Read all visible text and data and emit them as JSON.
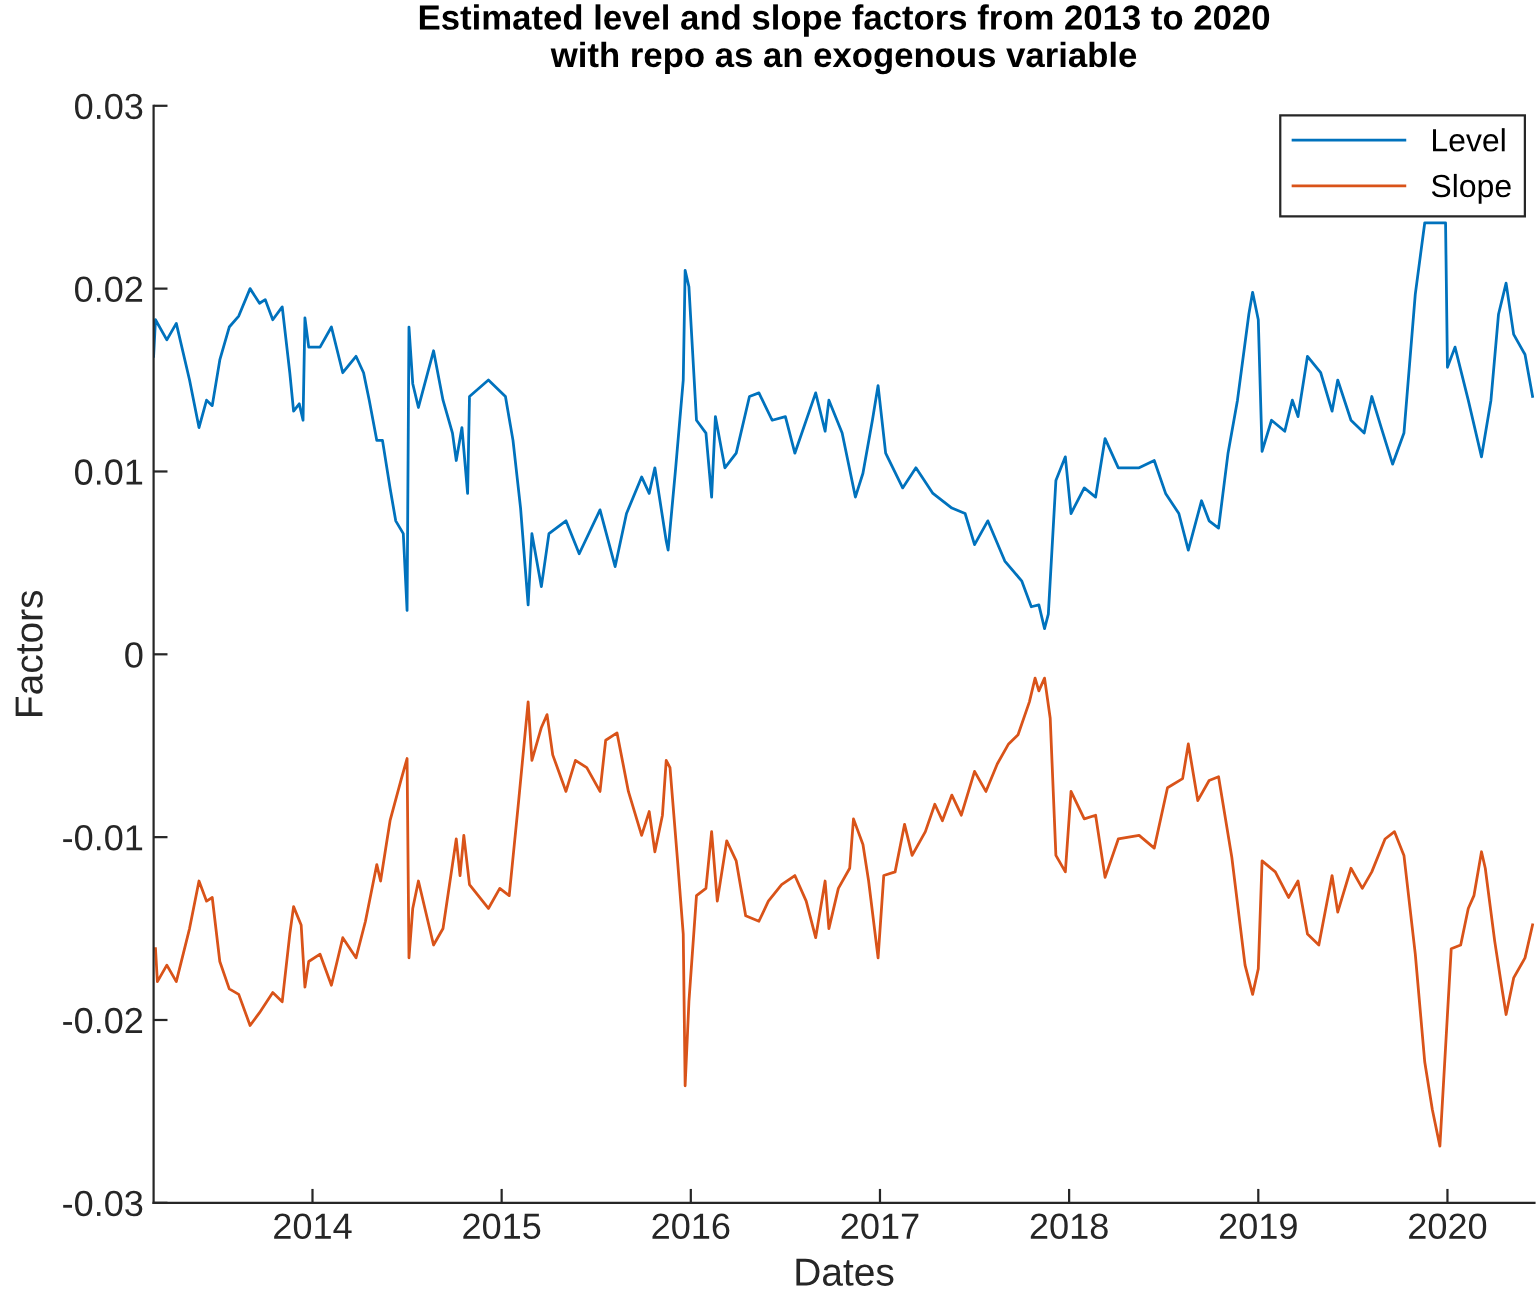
{
  "chart_data": {
    "type": "line",
    "title": "Estimated level and slope factors from 2013 to 2020\nwith repo as an exogenous variable",
    "xlabel": "Dates",
    "ylabel": "Factors",
    "xlim": [
      2013.16,
      2020.46
    ],
    "xticks": [
      2014,
      2015,
      2016,
      2017,
      2018,
      2019,
      2020
    ],
    "ylim": [
      -0.03,
      0.03
    ],
    "yticks": [
      -0.03,
      -0.02,
      -0.01,
      0,
      0.01,
      0.02,
      0.03
    ],
    "grid": false,
    "legend": "top right",
    "marker": "none",
    "line_style": "solid",
    "series": [
      {
        "name": "Level",
        "color": "#0072bd",
        "x": [
          2013.16,
          2013.17,
          2013.23,
          2013.28,
          2013.35,
          2013.4,
          2013.44,
          2013.47,
          2013.51,
          2013.56,
          2013.61,
          2013.67,
          2013.72,
          2013.75,
          2013.79,
          2013.84,
          2013.88,
          2013.9,
          2013.93,
          2013.95,
          2013.96,
          2013.98,
          2014.04,
          2014.1,
          2014.16,
          2014.23,
          2014.27,
          2014.3,
          2014.34,
          2014.37,
          2014.41,
          2014.44,
          2014.48,
          2014.5,
          2014.51,
          2014.53,
          2014.56,
          2014.64,
          2014.69,
          2014.74,
          2014.76,
          2014.79,
          2014.82,
          2014.83,
          2014.93,
          2015.02,
          2015.06,
          2015.1,
          2015.14,
          2015.16,
          2015.21,
          2015.25,
          2015.34,
          2015.41,
          2015.52,
          2015.6,
          2015.66,
          2015.74,
          2015.78,
          2015.81,
          2015.87,
          2015.88,
          2015.92,
          2015.96,
          2015.97,
          2015.99,
          2016.03,
          2016.08,
          2016.11,
          2016.13,
          2016.18,
          2016.24,
          2016.31,
          2016.36,
          2016.43,
          2016.5,
          2016.55,
          2016.66,
          2016.71,
          2016.73,
          2016.8,
          2016.87,
          2016.91,
          2016.96,
          2016.99,
          2017.03,
          2017.12,
          2017.19,
          2017.28,
          2017.38,
          2017.45,
          2017.5,
          2017.57,
          2017.66,
          2017.75,
          2017.8,
          2017.84,
          2017.87,
          2017.89,
          2017.93,
          2017.98,
          2018.01,
          2018.08,
          2018.14,
          2018.19,
          2018.26,
          2018.37,
          2018.45,
          2018.51,
          2018.58,
          2018.63,
          2018.7,
          2018.74,
          2018.79,
          2018.84,
          2018.89,
          2018.95,
          2018.97,
          2019.0,
          2019.02,
          2019.07,
          2019.14,
          2019.18,
          2019.21,
          2019.26,
          2019.33,
          2019.39,
          2019.42,
          2019.49,
          2019.56,
          2019.6,
          2019.65,
          2019.71,
          2019.77,
          2019.83,
          2019.88,
          2019.99,
          2020.0,
          2020.04,
          2020.11,
          2020.18,
          2020.23,
          2020.27,
          2020.31,
          2020.35,
          2020.41,
          2020.45
        ],
        "values": [
          0.0163,
          0.0183,
          0.0172,
          0.0181,
          0.015,
          0.0124,
          0.0139,
          0.0136,
          0.0161,
          0.0179,
          0.0185,
          0.02,
          0.0192,
          0.0194,
          0.0183,
          0.019,
          0.0154,
          0.0133,
          0.0137,
          0.0128,
          0.0184,
          0.0168,
          0.0168,
          0.0179,
          0.0154,
          0.0163,
          0.0154,
          0.0139,
          0.0117,
          0.0117,
          0.0091,
          0.0073,
          0.0066,
          0.0024,
          0.0179,
          0.0148,
          0.0135,
          0.0166,
          0.0139,
          0.0121,
          0.0106,
          0.0124,
          0.0088,
          0.0141,
          0.015,
          0.0141,
          0.0117,
          0.008,
          0.0027,
          0.0066,
          0.0037,
          0.0066,
          0.0073,
          0.0055,
          0.0079,
          0.0048,
          0.0077,
          0.0097,
          0.0088,
          0.0102,
          0.0062,
          0.0057,
          0.0102,
          0.015,
          0.021,
          0.0201,
          0.0128,
          0.0121,
          0.0086,
          0.013,
          0.0102,
          0.011,
          0.0141,
          0.0143,
          0.0128,
          0.013,
          0.011,
          0.0143,
          0.0122,
          0.0139,
          0.0121,
          0.0086,
          0.0099,
          0.0128,
          0.0147,
          0.011,
          0.0091,
          0.0102,
          0.0088,
          0.008,
          0.0077,
          0.006,
          0.0073,
          0.0051,
          0.004,
          0.0026,
          0.0027,
          0.0014,
          0.0022,
          0.0095,
          0.0108,
          0.0077,
          0.0091,
          0.0086,
          0.0118,
          0.0102,
          0.0102,
          0.0106,
          0.0088,
          0.0077,
          0.0057,
          0.0084,
          0.0073,
          0.0069,
          0.011,
          0.0139,
          0.0186,
          0.0198,
          0.0183,
          0.0111,
          0.0128,
          0.0122,
          0.0139,
          0.013,
          0.0163,
          0.0154,
          0.0133,
          0.015,
          0.0128,
          0.0121,
          0.0141,
          0.0124,
          0.0104,
          0.0121,
          0.0197,
          0.0236,
          0.0236,
          0.0157,
          0.0168,
          0.0139,
          0.0108,
          0.0139,
          0.0186,
          0.0203,
          0.0175,
          0.0164,
          0.0141
        ]
      },
      {
        "name": "Slope",
        "color": "#d95319",
        "x": [
          2013.17,
          2013.18,
          2013.23,
          2013.28,
          2013.35,
          2013.4,
          2013.44,
          2013.47,
          2013.51,
          2013.56,
          2013.61,
          2013.67,
          2013.72,
          2013.79,
          2013.84,
          2013.88,
          2013.9,
          2013.94,
          2013.96,
          2013.98,
          2014.04,
          2014.1,
          2014.16,
          2014.23,
          2014.28,
          2014.34,
          2014.36,
          2014.41,
          2014.47,
          2014.5,
          2014.51,
          2014.53,
          2014.56,
          2014.64,
          2014.69,
          2014.74,
          2014.76,
          2014.78,
          2014.8,
          2014.83,
          2014.93,
          2014.99,
          2015.04,
          2015.09,
          2015.14,
          2015.16,
          2015.21,
          2015.24,
          2015.27,
          2015.34,
          2015.39,
          2015.45,
          2015.52,
          2015.55,
          2015.61,
          2015.67,
          2015.74,
          2015.78,
          2015.81,
          2015.85,
          2015.87,
          2015.89,
          2015.93,
          2015.96,
          2015.97,
          2015.99,
          2016.03,
          2016.08,
          2016.11,
          2016.14,
          2016.19,
          2016.24,
          2016.29,
          2016.36,
          2016.41,
          2016.48,
          2016.55,
          2016.61,
          2016.66,
          2016.71,
          2016.73,
          2016.78,
          2016.84,
          2016.86,
          2016.91,
          2016.94,
          2016.99,
          2017.02,
          2017.08,
          2017.13,
          2017.17,
          2017.24,
          2017.29,
          2017.33,
          2017.38,
          2017.43,
          2017.5,
          2017.56,
          2017.62,
          2017.68,
          2017.73,
          2017.79,
          2017.82,
          2017.84,
          2017.87,
          2017.9,
          2017.93,
          2017.98,
          2018.01,
          2018.08,
          2018.14,
          2018.19,
          2018.26,
          2018.37,
          2018.45,
          2018.52,
          2018.6,
          2018.63,
          2018.68,
          2018.74,
          2018.79,
          2018.86,
          2018.93,
          2018.97,
          2019.0,
          2019.02,
          2019.09,
          2019.16,
          2019.21,
          2019.26,
          2019.32,
          2019.39,
          2019.42,
          2019.49,
          2019.55,
          2019.6,
          2019.67,
          2019.72,
          2019.77,
          2019.83,
          2019.88,
          2019.92,
          2019.96,
          2020.02,
          2020.07,
          2020.11,
          2020.14,
          2020.18,
          2020.2,
          2020.25,
          2020.29,
          2020.31,
          2020.35,
          2020.41,
          2020.45
        ],
        "values": [
          -0.0161,
          -0.0179,
          -0.017,
          -0.0179,
          -0.015,
          -0.0124,
          -0.0135,
          -0.0133,
          -0.0168,
          -0.0183,
          -0.0186,
          -0.0203,
          -0.0196,
          -0.0185,
          -0.019,
          -0.0153,
          -0.0138,
          -0.0148,
          -0.0182,
          -0.0168,
          -0.0164,
          -0.0181,
          -0.0155,
          -0.0166,
          -0.0146,
          -0.0115,
          -0.0124,
          -0.0091,
          -0.0068,
          -0.0057,
          -0.0166,
          -0.0139,
          -0.0124,
          -0.0159,
          -0.015,
          -0.0115,
          -0.0101,
          -0.0121,
          -0.0099,
          -0.0126,
          -0.0139,
          -0.0128,
          -0.0132,
          -0.008,
          -0.0026,
          -0.0058,
          -0.004,
          -0.0033,
          -0.0055,
          -0.0075,
          -0.0058,
          -0.0062,
          -0.0075,
          -0.0047,
          -0.0043,
          -0.0075,
          -0.0099,
          -0.0086,
          -0.0108,
          -0.0088,
          -0.0058,
          -0.0062,
          -0.0113,
          -0.0153,
          -0.0236,
          -0.019,
          -0.0132,
          -0.0128,
          -0.0097,
          -0.0135,
          -0.0102,
          -0.0113,
          -0.0143,
          -0.0146,
          -0.0135,
          -0.0126,
          -0.0121,
          -0.0135,
          -0.0155,
          -0.0124,
          -0.015,
          -0.0128,
          -0.0117,
          -0.009,
          -0.0104,
          -0.0124,
          -0.0166,
          -0.0121,
          -0.0119,
          -0.0093,
          -0.011,
          -0.0097,
          -0.0082,
          -0.0091,
          -0.0077,
          -0.0088,
          -0.0064,
          -0.0075,
          -0.006,
          -0.0049,
          -0.0044,
          -0.0026,
          -0.0013,
          -0.002,
          -0.0013,
          -0.0035,
          -0.011,
          -0.0119,
          -0.0075,
          -0.009,
          -0.0088,
          -0.0122,
          -0.0101,
          -0.0099,
          -0.0106,
          -0.0073,
          -0.0068,
          -0.0049,
          -0.008,
          -0.0069,
          -0.0067,
          -0.0111,
          -0.017,
          -0.0186,
          -0.0172,
          -0.0113,
          -0.0119,
          -0.0133,
          -0.0124,
          -0.0153,
          -0.0159,
          -0.0121,
          -0.0141,
          -0.0117,
          -0.0128,
          -0.0119,
          -0.0101,
          -0.0097,
          -0.011,
          -0.0164,
          -0.0223,
          -0.0249,
          -0.0269,
          -0.0161,
          -0.0159,
          -0.0139,
          -0.0132,
          -0.0108,
          -0.0117,
          -0.0157,
          -0.0184,
          -0.0197,
          -0.0177,
          -0.0166,
          -0.0148
        ]
      }
    ]
  }
}
